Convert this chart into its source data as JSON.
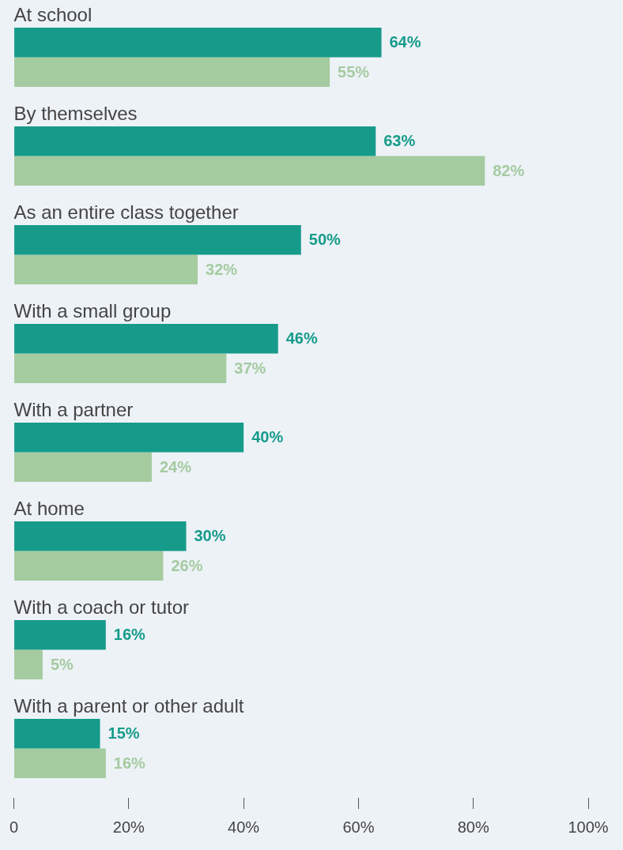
{
  "chart_data": {
    "type": "bar",
    "orientation": "horizontal",
    "categories": [
      "At school",
      "By themselves",
      "As an entire class together",
      "With a small group",
      "With a partner",
      "At home",
      "With a coach or tutor",
      "With a parent or other adult"
    ],
    "series": [
      {
        "color": "#169b8a",
        "values": [
          64,
          63,
          50,
          46,
          40,
          30,
          16,
          15
        ],
        "value_labels": [
          "64%",
          "63%",
          "50%",
          "46%",
          "40%",
          "30%",
          "16%",
          "15%"
        ]
      },
      {
        "color": "#a5cba0",
        "values": [
          55,
          82,
          32,
          37,
          24,
          26,
          5,
          16
        ],
        "value_labels": [
          "55%",
          "82%",
          "32%",
          "37%",
          "24%",
          "26%",
          "5%",
          "16%"
        ]
      }
    ],
    "xlim": [
      0,
      100
    ],
    "xticks": [
      0,
      {
        "value": 20,
        "label": "20%"
      },
      {
        "value": 40,
        "label": "40%"
      },
      {
        "value": 60,
        "label": "60%"
      },
      {
        "value": 80,
        "label": "80%"
      },
      {
        "value": 100,
        "label": "100%"
      }
    ],
    "grid": false,
    "legend": false
  }
}
